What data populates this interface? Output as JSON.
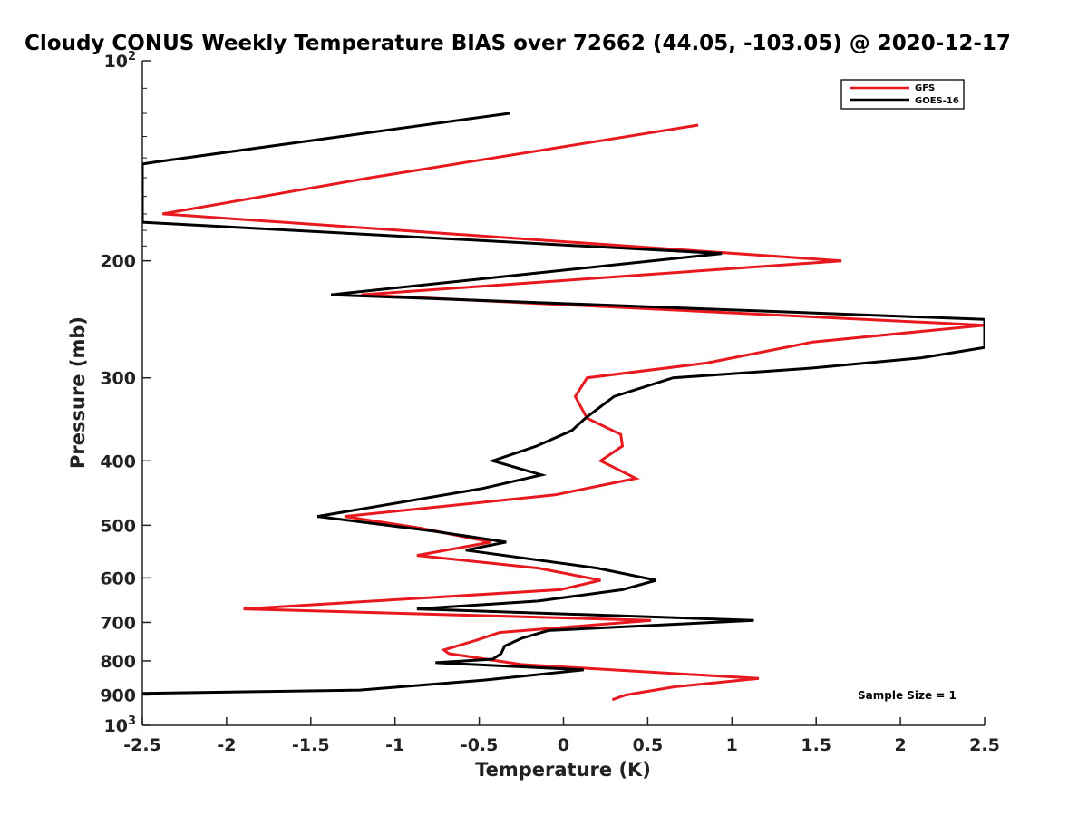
{
  "chart_data": {
    "type": "line",
    "title": "Cloudy CONUS Weekly Temperature BIAS over 72662 (44.05, -103.05) @ 2020-12-17",
    "xlabel": "Temperature (K)",
    "ylabel": "Pressure (mb)",
    "xlim": [
      -2.5,
      2.5
    ],
    "ylim": [
      100,
      1000
    ],
    "y_scale": "log",
    "y_direction": "reversed",
    "x_ticks": [
      "-2.5",
      "-2",
      "-1.5",
      "-1",
      "-0.5",
      "0",
      "0.5",
      "1",
      "1.5",
      "2",
      "2.5"
    ],
    "x_tick_values": [
      -2.5,
      -2,
      -1.5,
      -1,
      -0.5,
      0,
      0.5,
      1,
      1.5,
      2,
      2.5
    ],
    "y_ticks": [
      {
        "value": 100,
        "base": "10",
        "exp": "2"
      },
      {
        "value": 200,
        "label": "200"
      },
      {
        "value": 300,
        "label": "300"
      },
      {
        "value": 400,
        "label": "400"
      },
      {
        "value": 500,
        "label": "500"
      },
      {
        "value": 600,
        "label": "600"
      },
      {
        "value": 700,
        "label": "700"
      },
      {
        "value": 800,
        "label": "800"
      },
      {
        "value": 900,
        "label": "900"
      },
      {
        "value": 1000,
        "base": "10",
        "exp": "3"
      }
    ],
    "grid": false,
    "legend_position": "top-right",
    "annotation": "Sample Size = 1",
    "series": [
      {
        "name": "GFS",
        "color": "#e8191e",
        "points": [
          [
            0.8,
            125
          ],
          [
            -1.15,
            150
          ],
          [
            -2.38,
            170
          ],
          [
            1.65,
            200
          ],
          [
            -1.2,
            225
          ],
          [
            2.5,
            250
          ],
          [
            1.48,
            265
          ],
          [
            0.85,
            285
          ],
          [
            0.14,
            300
          ],
          [
            0.07,
            320
          ],
          [
            0.14,
            345
          ],
          [
            0.34,
            365
          ],
          [
            0.35,
            380
          ],
          [
            0.22,
            400
          ],
          [
            0.43,
            425
          ],
          [
            -0.05,
            450
          ],
          [
            -1.3,
            485
          ],
          [
            -0.85,
            505
          ],
          [
            -0.43,
            530
          ],
          [
            -0.87,
            555
          ],
          [
            -0.15,
            580
          ],
          [
            0.22,
            605
          ],
          [
            -0.02,
            625
          ],
          [
            -1.9,
            668
          ],
          [
            0.52,
            695
          ],
          [
            -0.38,
            725
          ],
          [
            -0.52,
            745
          ],
          [
            -0.71,
            770
          ],
          [
            -0.68,
            780
          ],
          [
            -0.25,
            810
          ],
          [
            1.16,
            850
          ],
          [
            0.66,
            875
          ],
          [
            0.37,
            900
          ],
          [
            0.29,
            915
          ]
        ]
      },
      {
        "name": "GOES-16",
        "color": "#000000",
        "points": [
          [
            -0.32,
            120
          ],
          [
            -2.42,
            142
          ],
          [
            -2.5,
            143
          ],
          [
            -2.5,
            175
          ],
          [
            0.94,
            195
          ],
          [
            -1.38,
            225
          ],
          [
            2.5,
            245
          ],
          [
            2.5,
            270
          ],
          [
            2.12,
            280
          ],
          [
            1.48,
            290
          ],
          [
            0.65,
            300
          ],
          [
            0.3,
            320
          ],
          [
            0.13,
            345
          ],
          [
            0.05,
            360
          ],
          [
            -0.16,
            380
          ],
          [
            -0.42,
            400
          ],
          [
            -0.13,
            420
          ],
          [
            -0.48,
            440
          ],
          [
            -1.46,
            485
          ],
          [
            -0.78,
            510
          ],
          [
            -0.34,
            530
          ],
          [
            -0.58,
            545
          ],
          [
            0.2,
            580
          ],
          [
            0.55,
            605
          ],
          [
            0.35,
            625
          ],
          [
            -0.15,
            650
          ],
          [
            -0.87,
            668
          ],
          [
            1.13,
            695
          ],
          [
            -0.09,
            720
          ],
          [
            -0.25,
            740
          ],
          [
            -0.35,
            760
          ],
          [
            -0.37,
            780
          ],
          [
            -0.42,
            795
          ],
          [
            -0.76,
            805
          ],
          [
            0.12,
            825
          ],
          [
            -0.47,
            855
          ],
          [
            -1.21,
            885
          ],
          [
            -2.5,
            895
          ]
        ]
      }
    ]
  }
}
